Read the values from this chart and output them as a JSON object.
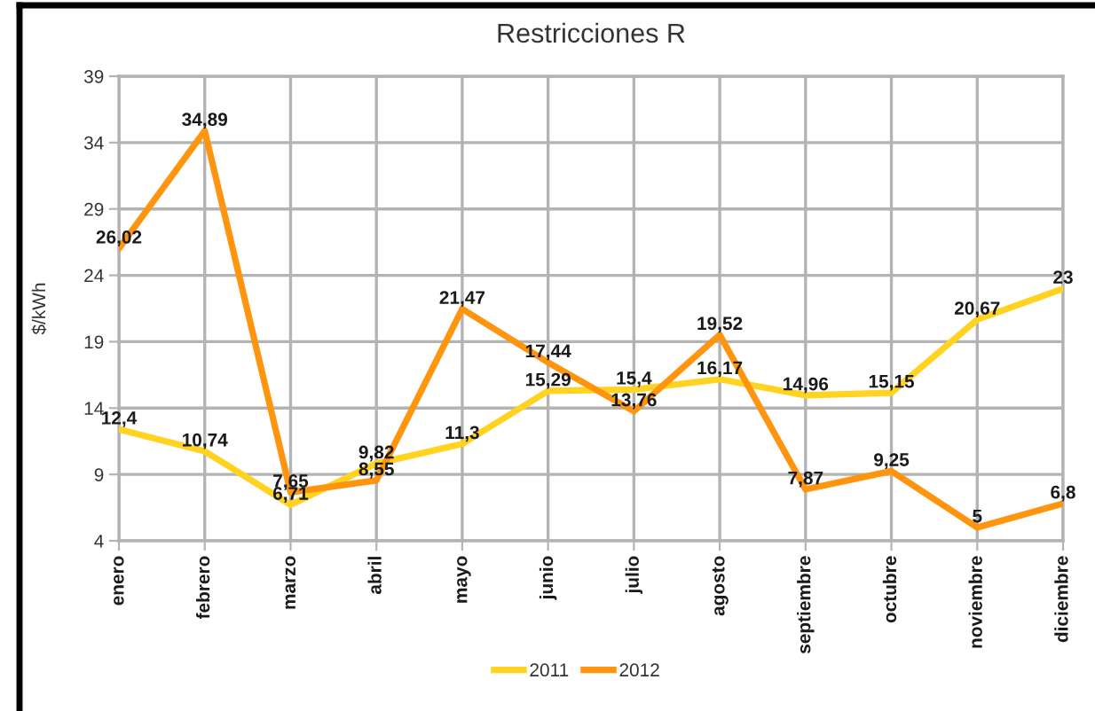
{
  "chart_data": {
    "type": "line",
    "title": "Restricciones R",
    "ylabel": "$/kWh",
    "categories": [
      "enero",
      "febrero",
      "marzo",
      "abril",
      "mayo",
      "junio",
      "julio",
      "agosto",
      "septiembre",
      "octubre",
      "noviembre",
      "diciembre"
    ],
    "series": [
      {
        "name": "2011",
        "color": "#ffd320",
        "values": [
          12.4,
          10.74,
          6.71,
          9.82,
          11.3,
          15.29,
          15.4,
          16.17,
          14.96,
          15.15,
          20.67,
          23
        ],
        "value_labels": [
          "12,4",
          "10,74",
          "6,71",
          "9,82",
          "11,3",
          "15,29",
          "15,4",
          "16,17",
          "14,96",
          "15,15",
          "20,67",
          "23"
        ]
      },
      {
        "name": "2012",
        "color": "#ff950e",
        "values": [
          26.02,
          34.89,
          7.65,
          8.55,
          21.47,
          17.44,
          13.76,
          19.52,
          7.87,
          9.25,
          5,
          6.8
        ],
        "value_labels": [
          "26,02",
          "34,89",
          "7,65",
          "8,55",
          "21,47",
          "17,44",
          "13,76",
          "19,52",
          "7,87",
          "9,25",
          "5",
          "6,8"
        ]
      }
    ],
    "ylim": [
      4,
      39
    ],
    "yticks": [
      4,
      9,
      14,
      19,
      24,
      29,
      34,
      39
    ],
    "grid": true,
    "legend": "bottom"
  }
}
